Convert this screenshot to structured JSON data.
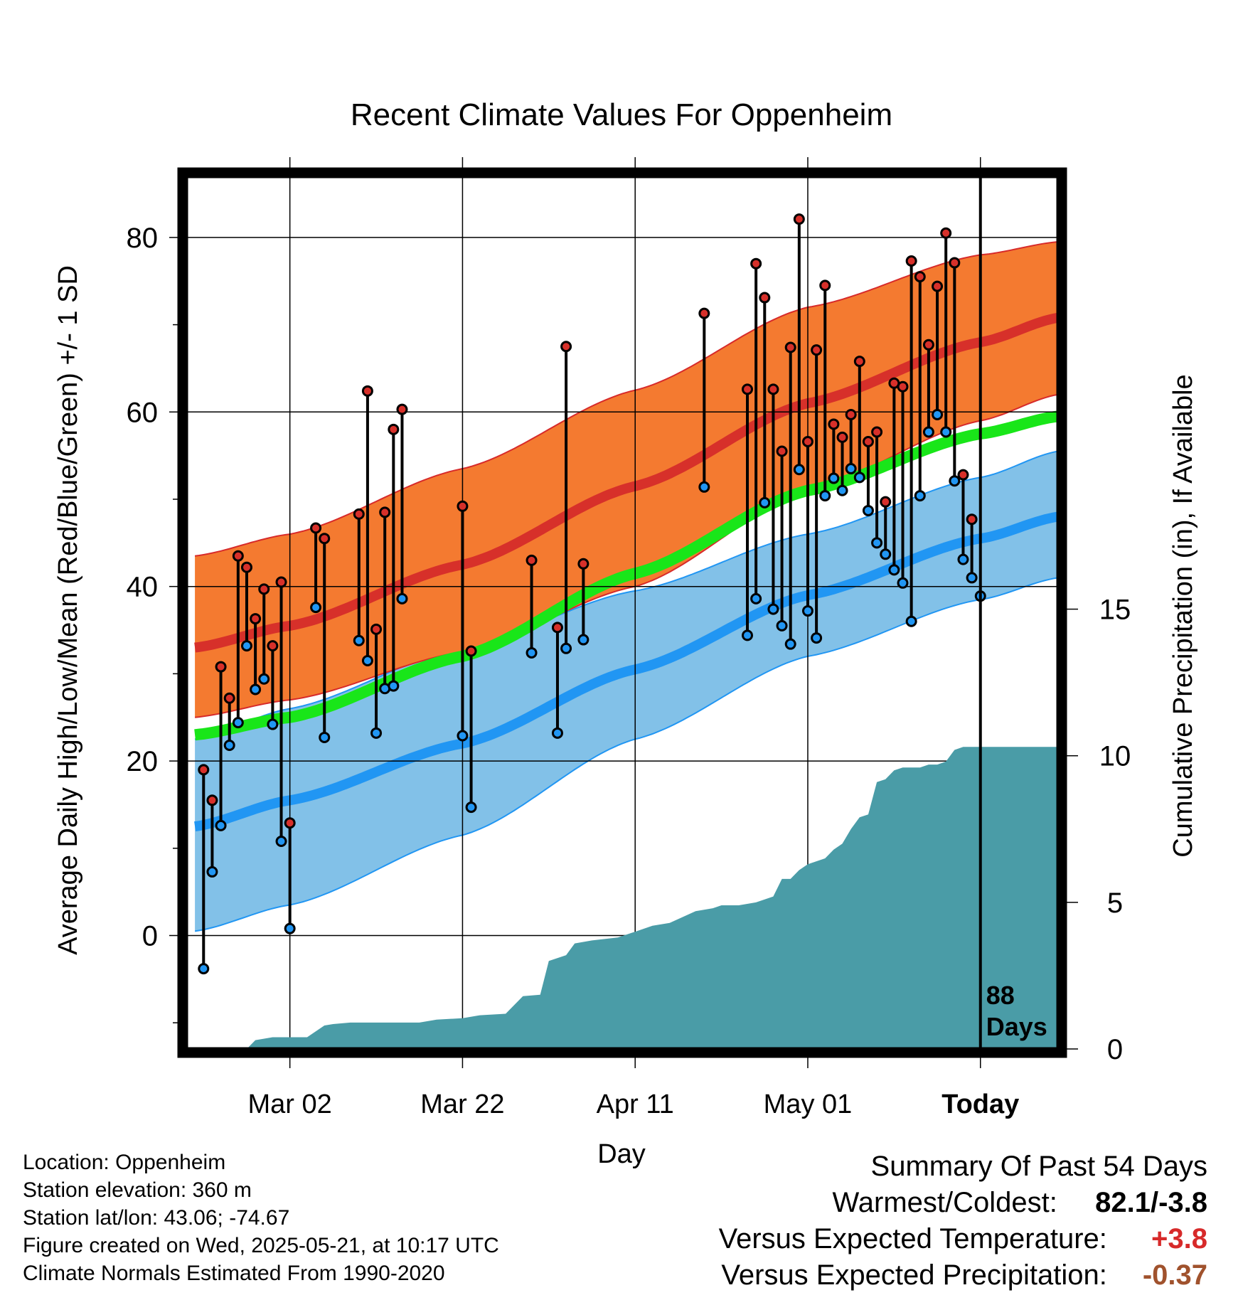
{
  "chart_data": {
    "type": "line",
    "title": "Recent Climate Values For Oppenheim",
    "xlabel": "Day",
    "ylabel": "Average Daily High/Low/Mean (Red/Blue/Green) +/- 1 SD",
    "y2label": "Cumulative Precipitation (in), If Available",
    "x_tick_labels": [
      "Mar 02",
      "Mar 22",
      "Apr 11",
      "May 01",
      "Today"
    ],
    "x_tick_days": [
      -80,
      -60,
      -40,
      -20,
      0
    ],
    "xlim": [
      -92,
      9
    ],
    "ylim": [
      -13,
      87
    ],
    "y_ticks": [
      0,
      20,
      40,
      60,
      80
    ],
    "y2lim": [
      0,
      29.76
    ],
    "y2_ticks": [
      0,
      5,
      10,
      15
    ],
    "grid": true,
    "today_marker": "88\nDays",
    "normals": {
      "days": [
        -91,
        -80,
        -60,
        -40,
        -20,
        0,
        9
      ],
      "high_mean": [
        33.0,
        35.5,
        42.5,
        51.5,
        61.0,
        68.0,
        70.8
      ],
      "high_upper": [
        43.5,
        46.0,
        53.5,
        62.5,
        72.0,
        78.0,
        79.5
      ],
      "high_lower": [
        25.0,
        27.0,
        32.5,
        40.0,
        51.0,
        59.0,
        62.0
      ],
      "mean": [
        23.0,
        25.0,
        32.0,
        41.5,
        51.0,
        57.5,
        59.5
      ],
      "low_mean": [
        12.5,
        15.5,
        22.0,
        30.5,
        39.0,
        45.5,
        48.0
      ],
      "low_upper": [
        22.5,
        26.0,
        33.0,
        39.5,
        46.0,
        52.5,
        55.5
      ],
      "low_lower": [
        0.5,
        3.5,
        11.5,
        22.5,
        32.0,
        38.5,
        41.0
      ]
    },
    "series": [
      {
        "name": "High",
        "color": "#d7302a",
        "x": [
          -90,
          -89,
          -88,
          -87,
          -86,
          -85,
          -84,
          -83,
          -82,
          -81,
          -80,
          -77,
          -76,
          -72,
          -71,
          -70,
          -69,
          -68,
          -67,
          -60,
          -59,
          -52,
          -49,
          -48,
          -46,
          -32,
          -27,
          -26,
          -25,
          -24,
          -23,
          -22,
          -21,
          -20,
          -19,
          -18,
          -17,
          -16,
          -15,
          -14,
          -13,
          -12,
          -11,
          -10,
          -9,
          -8,
          -7,
          -6,
          -5,
          -4,
          -3,
          -2,
          -1
        ],
        "values": [
          19.0,
          15.5,
          30.8,
          27.2,
          43.5,
          42.2,
          36.3,
          39.7,
          33.2,
          40.5,
          12.9,
          46.7,
          45.5,
          48.3,
          62.4,
          35.1,
          48.5,
          58.0,
          60.3,
          49.2,
          32.6,
          43.0,
          35.3,
          67.5,
          42.6,
          71.3,
          62.6,
          77.0,
          73.1,
          62.6,
          55.5,
          67.4,
          82.1,
          56.6,
          67.1,
          74.5,
          58.6,
          57.1,
          59.7,
          65.8,
          56.6,
          57.7,
          49.7,
          63.3,
          62.9,
          77.3,
          75.5,
          67.7,
          74.4,
          80.5,
          77.1,
          52.8,
          47.7
        ]
      },
      {
        "name": "Low",
        "color": "#2196f3",
        "x": [
          -90,
          -89,
          -88,
          -87,
          -86,
          -85,
          -84,
          -83,
          -82,
          -81,
          -80,
          -77,
          -76,
          -72,
          -71,
          -70,
          -69,
          -68,
          -67,
          -60,
          -59,
          -52,
          -49,
          -48,
          -46,
          -32,
          -27,
          -26,
          -25,
          -24,
          -23,
          -22,
          -21,
          -20,
          -19,
          -18,
          -17,
          -16,
          -15,
          -14,
          -13,
          -12,
          -11,
          -10,
          -9,
          -8,
          -7,
          -6,
          -5,
          -4,
          -3,
          -2,
          -1,
          0
        ],
        "values": [
          -3.8,
          7.3,
          12.6,
          21.8,
          24.4,
          33.2,
          28.2,
          29.4,
          24.2,
          10.8,
          0.8,
          37.6,
          22.7,
          33.8,
          31.5,
          23.2,
          28.3,
          28.6,
          38.6,
          22.9,
          14.7,
          32.4,
          23.2,
          32.9,
          33.9,
          51.4,
          34.4,
          38.6,
          49.6,
          37.4,
          35.5,
          33.4,
          53.4,
          37.2,
          34.1,
          50.4,
          52.4,
          51.0,
          53.5,
          52.5,
          48.7,
          45.0,
          43.7,
          41.9,
          40.4,
          36.0,
          50.4,
          57.7,
          59.7,
          57.7,
          52.1,
          43.1,
          41.0,
          38.9
        ]
      }
    ],
    "precip": {
      "days": [
        -91,
        -85,
        -84,
        -82,
        -80,
        -78,
        -76,
        -75,
        -73,
        -70,
        -65,
        -63,
        -60,
        -58,
        -55,
        -53,
        -51,
        -50,
        -48,
        -47,
        -45,
        -42,
        -40,
        -38,
        -36,
        -33,
        -31,
        -30,
        -28,
        -26,
        -24,
        -23,
        -22,
        -21,
        -20,
        -19,
        -18,
        -17,
        -16,
        -15,
        -14,
        -13,
        -12,
        -11,
        -10,
        -9,
        -8,
        -7,
        -6,
        -5,
        -4,
        -3,
        -2,
        -1,
        0,
        9
      ],
      "values": [
        0,
        0,
        0.3,
        0.4,
        0.4,
        0.4,
        0.8,
        0.85,
        0.9,
        0.9,
        0.9,
        1.0,
        1.05,
        1.15,
        1.2,
        1.8,
        1.85,
        3.0,
        3.2,
        3.6,
        3.7,
        3.8,
        4.0,
        4.2,
        4.3,
        4.7,
        4.8,
        4.9,
        4.9,
        5.0,
        5.2,
        5.8,
        5.8,
        6.1,
        6.3,
        6.4,
        6.5,
        6.8,
        7.0,
        7.5,
        7.9,
        8.0,
        9.1,
        9.2,
        9.5,
        9.6,
        9.6,
        9.6,
        9.7,
        9.7,
        9.8,
        10.2,
        10.3,
        10.3,
        10.3,
        10.3
      ]
    },
    "colors": {
      "high_band": "#f47a30",
      "high_line": "#d7302a",
      "low_band": "#82c1e8",
      "low_line": "#2196f3",
      "mean_line": "#19e619",
      "precip": "#4a9ca7",
      "band_edge_high": "#d72a2a",
      "band_edge_low": "#2196f3"
    }
  },
  "info": {
    "location": "Location: Oppenheim",
    "elevation": "Station elevation: 360 m",
    "latlon": "Station lat/lon: 43.06; -74.67",
    "created": "Figure created on Wed, 2025-05-21, at 10:17 UTC",
    "normals": "Climate Normals Estimated From 1990-2020"
  },
  "summary": {
    "title": "Summary Of Past 54 Days",
    "warmest_label": "Warmest/Coldest:",
    "warmest_value": "82.1/-3.8",
    "temp_label": "Versus Expected Temperature:",
    "temp_value": "+3.8",
    "temp_color": "#d72a2a",
    "precip_label": "Versus Expected Precipitation:",
    "precip_value": "-0.37",
    "precip_color": "#a0522d"
  }
}
